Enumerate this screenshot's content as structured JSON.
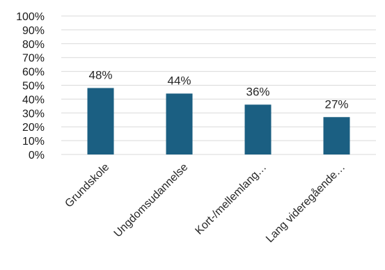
{
  "chart_data": {
    "type": "bar",
    "categories": [
      "Grundskole",
      "Ungdomsudannelse",
      "Kort-/mellemlang…",
      "Lang videregående…"
    ],
    "values": [
      48,
      44,
      36,
      27
    ],
    "data_labels": [
      "48%",
      "44%",
      "36%",
      "27%"
    ],
    "y_ticks": [
      "0%",
      "10%",
      "20%",
      "30%",
      "40%",
      "50%",
      "60%",
      "70%",
      "80%",
      "90%",
      "100%"
    ],
    "ylim": [
      0,
      100
    ],
    "grid": true,
    "bar_color": "#1b5f82",
    "grid_color": "#d9d9d9"
  }
}
